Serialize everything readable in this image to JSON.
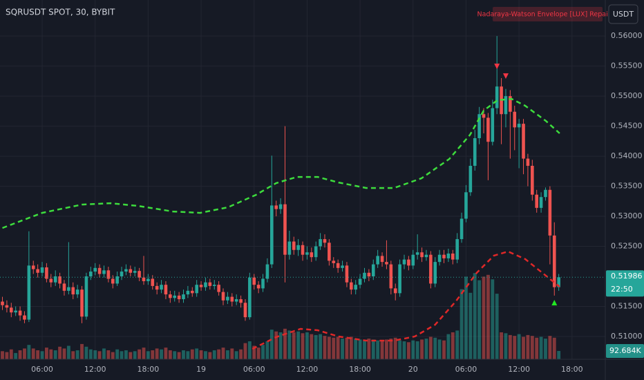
{
  "chart_data": {
    "type": "candlestick",
    "title": "SQRUSDT SPOT, 30, BYBIT",
    "indicator": "Nadaraya-Watson Envelope [LUX] Repaints",
    "currency": "USDT",
    "xlim": [
      -0.55,
      136.54
    ],
    "xticks": [
      {
        "value": 9,
        "label": "06:00"
      },
      {
        "value": 21,
        "label": "12:00"
      },
      {
        "value": 33,
        "label": "18:00"
      },
      {
        "value": 45,
        "label": "19"
      },
      {
        "value": 57,
        "label": "06:00"
      },
      {
        "value": 69,
        "label": "12:00"
      },
      {
        "value": 81,
        "label": "18:00"
      },
      {
        "value": 93,
        "label": "20"
      },
      {
        "value": 105,
        "label": "06:00"
      },
      {
        "value": 117,
        "label": "12:00"
      },
      {
        "value": 129,
        "label": "18:00"
      }
    ],
    "ylim": [
      0.5062,
      0.566
    ],
    "yticks": [
      {
        "value": 0.51,
        "label": "0.51000"
      },
      {
        "value": 0.515,
        "label": "0.51500"
      },
      {
        "value": 0.525,
        "label": "0.52500"
      },
      {
        "value": 0.53,
        "label": "0.53000"
      },
      {
        "value": 0.535,
        "label": "0.53500"
      },
      {
        "value": 0.54,
        "label": "0.54000"
      },
      {
        "value": 0.545,
        "label": "0.54500"
      },
      {
        "value": 0.55,
        "label": "0.55000"
      },
      {
        "value": 0.555,
        "label": "0.55500"
      },
      {
        "value": 0.56,
        "label": "0.56000"
      }
    ],
    "vlim": [
      0,
      4000000
    ],
    "grid": true,
    "up_color": "#26a69a",
    "down_color": "#ef5350",
    "open": [
      0.5158,
      0.5152,
      0.5148,
      0.514,
      0.5143,
      0.5135,
      0.5128,
      0.5218,
      0.5212,
      0.5206,
      0.5215,
      0.5196,
      0.519,
      0.52,
      0.5188,
      0.5176,
      0.5182,
      0.517,
      0.5178,
      0.5133,
      0.52,
      0.5208,
      0.5214,
      0.5204,
      0.521,
      0.5196,
      0.5188,
      0.52,
      0.5208,
      0.5212,
      0.5206,
      0.5209,
      0.5198,
      0.5192,
      0.5196,
      0.5184,
      0.5178,
      0.5186,
      0.517,
      0.5164,
      0.5168,
      0.5162,
      0.517,
      0.5176,
      0.5172,
      0.5186,
      0.5182,
      0.519,
      0.5184,
      0.5186,
      0.5174,
      0.516,
      0.5166,
      0.5158,
      0.5162,
      0.5156,
      0.5132,
      0.5198,
      0.5186,
      0.518,
      0.5196,
      0.522,
      0.5318,
      0.5312,
      0.532,
      0.5236,
      0.5258,
      0.5244,
      0.5252,
      0.5236,
      0.524,
      0.5232,
      0.525,
      0.5262,
      0.5256,
      0.5226,
      0.5222,
      0.5214,
      0.5218,
      0.519,
      0.5178,
      0.5186,
      0.5196,
      0.5206,
      0.52,
      0.522,
      0.5234,
      0.5224,
      0.522,
      0.518,
      0.5172,
      0.522,
      0.5228,
      0.5218,
      0.5236,
      0.524,
      0.5232,
      0.5236,
      0.5188,
      0.5224,
      0.5236,
      0.523,
      0.5238,
      0.5228,
      0.5262,
      0.5296,
      0.534,
      0.5384,
      0.543,
      0.547,
      0.5464,
      0.5424,
      0.548,
      0.5516,
      0.547,
      0.55,
      0.5474,
      0.5448,
      0.5454,
      0.5396,
      0.5384,
      0.5336,
      0.5314,
      0.5332,
      0.5344,
      0.5268,
      0.5182
    ],
    "high": [
      0.5166,
      0.516,
      0.5156,
      0.515,
      0.515,
      0.5142,
      0.5275,
      0.5226,
      0.522,
      0.5224,
      0.5222,
      0.5204,
      0.521,
      0.5206,
      0.5194,
      0.5257,
      0.519,
      0.5186,
      0.5184,
      0.5206,
      0.5216,
      0.5222,
      0.522,
      0.5218,
      0.5216,
      0.5202,
      0.5208,
      0.5216,
      0.522,
      0.5218,
      0.5216,
      0.5214,
      0.5234,
      0.5204,
      0.5202,
      0.519,
      0.5194,
      0.5192,
      0.5176,
      0.5176,
      0.5174,
      0.5178,
      0.5184,
      0.5182,
      0.5194,
      0.5192,
      0.5198,
      0.5196,
      0.5194,
      0.5192,
      0.518,
      0.5174,
      0.5172,
      0.517,
      0.5168,
      0.5162,
      0.5206,
      0.5204,
      0.5192,
      0.5204,
      0.523,
      0.5401,
      0.5326,
      0.533,
      0.545,
      0.5276,
      0.5266,
      0.5262,
      0.5258,
      0.525,
      0.5248,
      0.5258,
      0.5272,
      0.527,
      0.5262,
      0.5232,
      0.5228,
      0.5226,
      0.5224,
      0.5196,
      0.5194,
      0.5204,
      0.5214,
      0.5212,
      0.5228,
      0.5244,
      0.524,
      0.526,
      0.5226,
      0.5188,
      0.5228,
      0.5236,
      0.5234,
      0.5244,
      0.527,
      0.5248,
      0.5244,
      0.5242,
      0.5232,
      0.5244,
      0.5244,
      0.5246,
      0.5244,
      0.5272,
      0.5306,
      0.5352,
      0.5396,
      0.5444,
      0.5482,
      0.548,
      0.5472,
      0.5494,
      0.56,
      0.553,
      0.5512,
      0.551,
      0.5484,
      0.5462,
      0.5462,
      0.5404,
      0.5394,
      0.5344,
      0.534,
      0.5348,
      0.535,
      0.529,
      0.5204
    ],
    "low": [
      0.5144,
      0.514,
      0.5132,
      0.5134,
      0.5126,
      0.5122,
      0.5124,
      0.5204,
      0.5198,
      0.52,
      0.519,
      0.5182,
      0.5184,
      0.518,
      0.5168,
      0.517,
      0.5162,
      0.5164,
      0.5122,
      0.5128,
      0.5194,
      0.5202,
      0.5198,
      0.5198,
      0.519,
      0.518,
      0.5184,
      0.5194,
      0.5202,
      0.52,
      0.52,
      0.5192,
      0.5186,
      0.5186,
      0.5178,
      0.517,
      0.5172,
      0.5162,
      0.5156,
      0.5158,
      0.5156,
      0.5156,
      0.5164,
      0.5166,
      0.5166,
      0.5176,
      0.5176,
      0.5178,
      0.5178,
      0.5168,
      0.5152,
      0.5154,
      0.515,
      0.5152,
      0.5148,
      0.5126,
      0.5128,
      0.5178,
      0.5172,
      0.5174,
      0.519,
      0.5214,
      0.53,
      0.5304,
      0.519,
      0.5228,
      0.5236,
      0.5234,
      0.5226,
      0.5228,
      0.5224,
      0.5226,
      0.5244,
      0.5248,
      0.5218,
      0.5214,
      0.5206,
      0.5208,
      0.5182,
      0.517,
      0.517,
      0.518,
      0.519,
      0.5192,
      0.5194,
      0.5214,
      0.5216,
      0.5212,
      0.517,
      0.516,
      0.5166,
      0.5212,
      0.521,
      0.5212,
      0.5228,
      0.5224,
      0.5226,
      0.518,
      0.5182,
      0.5218,
      0.5222,
      0.5224,
      0.522,
      0.5222,
      0.5256,
      0.529,
      0.5334,
      0.5376,
      0.542,
      0.5438,
      0.536,
      0.5418,
      0.547,
      0.542,
      0.5448,
      0.5396,
      0.541,
      0.538,
      0.537,
      0.535,
      0.5326,
      0.5306,
      0.5306,
      0.5326,
      0.522,
      0.5168,
      0.5176
    ],
    "close": [
      0.5152,
      0.5148,
      0.514,
      0.5143,
      0.5135,
      0.5128,
      0.5218,
      0.5212,
      0.5206,
      0.5215,
      0.5196,
      0.519,
      0.52,
      0.5188,
      0.5176,
      0.5182,
      0.517,
      0.5178,
      0.5133,
      0.52,
      0.5208,
      0.5214,
      0.5204,
      0.521,
      0.5196,
      0.5188,
      0.52,
      0.5208,
      0.5212,
      0.5206,
      0.5209,
      0.5198,
      0.5192,
      0.5196,
      0.5184,
      0.5178,
      0.5186,
      0.517,
      0.5164,
      0.5168,
      0.5162,
      0.517,
      0.5176,
      0.5172,
      0.5186,
      0.5182,
      0.519,
      0.5184,
      0.5186,
      0.5174,
      0.516,
      0.5166,
      0.5158,
      0.5162,
      0.5156,
      0.5132,
      0.5198,
      0.5186,
      0.518,
      0.5196,
      0.522,
      0.5318,
      0.5312,
      0.532,
      0.5236,
      0.5258,
      0.5244,
      0.5252,
      0.5236,
      0.524,
      0.5232,
      0.525,
      0.5262,
      0.5256,
      0.5226,
      0.5222,
      0.5214,
      0.5218,
      0.519,
      0.5178,
      0.5186,
      0.5196,
      0.5206,
      0.52,
      0.522,
      0.5234,
      0.5224,
      0.522,
      0.518,
      0.5172,
      0.522,
      0.5228,
      0.5218,
      0.5236,
      0.524,
      0.5232,
      0.5236,
      0.5188,
      0.5224,
      0.5236,
      0.523,
      0.5238,
      0.5228,
      0.5262,
      0.5296,
      0.534,
      0.5384,
      0.543,
      0.547,
      0.5464,
      0.5424,
      0.548,
      0.5516,
      0.547,
      0.55,
      0.5474,
      0.5448,
      0.5454,
      0.5396,
      0.5384,
      0.5336,
      0.5314,
      0.5332,
      0.5344,
      0.5268,
      0.5182,
      0.51986
    ],
    "volume": [
      90000,
      80000,
      110000,
      70000,
      100000,
      120000,
      160000,
      120000,
      100000,
      90000,
      130000,
      110000,
      100000,
      140000,
      120000,
      150000,
      90000,
      100000,
      170000,
      140000,
      110000,
      100000,
      90000,
      120000,
      100000,
      80000,
      110000,
      90000,
      100000,
      80000,
      90000,
      110000,
      130000,
      90000,
      100000,
      120000,
      110000,
      130000,
      100000,
      90000,
      80000,
      100000,
      90000,
      110000,
      120000,
      100000,
      90000,
      80000,
      100000,
      110000,
      130000,
      100000,
      120000,
      90000,
      110000,
      180000,
      200000,
      150000,
      130000,
      160000,
      200000,
      330000,
      310000,
      300000,
      340000,
      320000,
      300000,
      310000,
      290000,
      300000,
      280000,
      270000,
      280000,
      260000,
      250000,
      240000,
      250000,
      230000,
      240000,
      250000,
      230000,
      220000,
      210000,
      230000,
      220000,
      210000,
      200000,
      220000,
      230000,
      240000,
      210000,
      200000,
      190000,
      210000,
      200000,
      220000,
      230000,
      250000,
      240000,
      220000,
      210000,
      280000,
      300000,
      320000,
      780000,
      920000,
      740000,
      960000,
      880000,
      920000,
      940000,
      890000,
      730000,
      300000,
      290000,
      270000,
      260000,
      280000,
      250000,
      270000,
      260000,
      240000,
      250000,
      230000,
      260000,
      240000,
      92684
    ],
    "lines": [
      {
        "color": "#3ddc3d",
        "x": [
          0,
          9,
          18,
          24.5,
          30.8,
          38.6,
          44.8,
          51.1,
          57.4,
          62,
          66.7,
          71.4,
          76.1,
          82.4,
          88.7,
          94.9,
          101.2,
          105.9,
          109,
          112.1,
          115.3,
          118.4,
          123.1,
          126.2
        ],
        "values": [
          0.52805,
          0.53057,
          0.53195,
          0.53218,
          0.53172,
          0.5308,
          0.53057,
          0.5315,
          0.53356,
          0.53552,
          0.53655,
          0.53655,
          0.53563,
          0.53471,
          0.53471,
          0.53632,
          0.53954,
          0.54356,
          0.54759,
          0.54931,
          0.54954,
          0.54839,
          0.54586,
          0.5438
        ]
      },
      {
        "color": "#e02828",
        "x": [
          56.6,
          62,
          67.5,
          71.4,
          76.1,
          82.4,
          88.7,
          93.4,
          98,
          102.7,
          107.4,
          111.3,
          114.5,
          118.4,
          122.3,
          126.2
        ],
        "values": [
          0.50793,
          0.50989,
          0.51126,
          0.51103,
          0.51,
          0.50931,
          0.50931,
          0.51,
          0.51195,
          0.51586,
          0.52057,
          0.52345,
          0.52414,
          0.52287,
          0.52057,
          0.51828
        ]
      }
    ],
    "sell_signals": {
      "color": "#f23645",
      "x": [
        112,
        114
      ],
      "values": [
        0.55494,
        0.55333
      ]
    },
    "buy_signals": {
      "color": "#22e822",
      "x": [
        125
      ],
      "values": [
        0.51563
      ]
    },
    "last_price": 0.51986,
    "countdown": "22:50",
    "last_volume_label": "92.684K"
  }
}
